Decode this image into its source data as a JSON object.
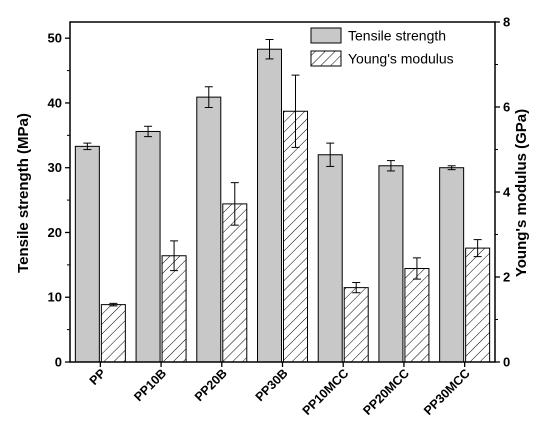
{
  "chart_data": {
    "type": "bar",
    "categories": [
      "PP",
      "PP10B",
      "PP20B",
      "PP30B",
      "PP10MCC",
      "PP20MCC",
      "PP30MCC"
    ],
    "series": [
      {
        "name": "Tensile strength",
        "axis": "left",
        "values": [
          33.3,
          35.6,
          40.9,
          48.3,
          32.0,
          30.3,
          30.0
        ],
        "errors": [
          0.5,
          0.8,
          1.6,
          1.5,
          1.8,
          0.8,
          0.3
        ],
        "fill": "#c8c8c8",
        "pattern": "solid"
      },
      {
        "name": "Young's modulus",
        "axis": "right",
        "values": [
          1.35,
          2.5,
          3.72,
          5.9,
          1.75,
          2.2,
          2.68
        ],
        "errors": [
          0.03,
          0.35,
          0.5,
          0.85,
          0.12,
          0.25,
          0.2
        ],
        "fill": "#ffffff",
        "pattern": "hatched"
      }
    ],
    "ylabel": "Tensile strength (MPa)",
    "ylabel_right": "Young's modulus (GPa)",
    "ylim": [
      0,
      52.5
    ],
    "ylim_right": [
      0,
      8
    ],
    "yticks": [
      0,
      10,
      20,
      30,
      40,
      50
    ],
    "yticks_right": [
      0,
      2,
      4,
      6,
      8
    ],
    "legend_position": "top-right",
    "grid": false
  }
}
